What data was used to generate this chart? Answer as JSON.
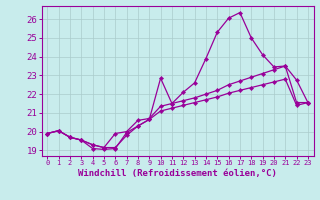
{
  "xlabel": "Windchill (Refroidissement éolien,°C)",
  "bg_color": "#c8ecec",
  "line_color": "#990099",
  "grid_color": "#aaccaa",
  "xlim": [
    -0.5,
    23.5
  ],
  "ylim": [
    18.7,
    26.7
  ],
  "xticks": [
    0,
    1,
    2,
    3,
    4,
    5,
    6,
    7,
    8,
    9,
    10,
    11,
    12,
    13,
    14,
    15,
    16,
    17,
    18,
    19,
    20,
    21,
    22,
    23
  ],
  "yticks": [
    19,
    20,
    21,
    22,
    23,
    24,
    25,
    26
  ],
  "lines": [
    {
      "x": [
        0,
        1,
        2,
        3,
        4,
        5,
        6,
        7,
        8,
        9,
        10,
        11,
        12,
        13,
        14,
        15,
        16,
        17,
        18,
        19,
        20,
        21,
        22,
        23
      ],
      "y": [
        19.9,
        20.05,
        19.7,
        19.55,
        19.1,
        19.05,
        19.1,
        19.95,
        20.3,
        20.65,
        22.85,
        21.5,
        22.1,
        22.6,
        23.9,
        25.3,
        26.05,
        26.35,
        25.0,
        24.1,
        23.45,
        23.5,
        22.75,
        21.55
      ]
    },
    {
      "x": [
        0,
        1,
        2,
        3,
        4,
        5,
        6,
        7,
        8,
        9,
        10,
        11,
        12,
        13,
        14,
        15,
        16,
        17,
        18,
        19,
        20,
        21,
        22,
        23
      ],
      "y": [
        19.9,
        20.05,
        19.7,
        19.55,
        19.3,
        19.15,
        19.9,
        20.0,
        20.6,
        20.7,
        21.35,
        21.5,
        21.65,
        21.8,
        22.0,
        22.2,
        22.5,
        22.7,
        22.9,
        23.1,
        23.3,
        23.5,
        21.55,
        21.55
      ]
    },
    {
      "x": [
        0,
        1,
        2,
        3,
        4,
        5,
        6,
        7,
        8,
        9,
        10,
        11,
        12,
        13,
        14,
        15,
        16,
        17,
        18,
        19,
        20,
        21,
        22,
        23
      ],
      "y": [
        19.9,
        20.05,
        19.7,
        19.55,
        19.3,
        19.15,
        19.15,
        19.8,
        20.3,
        20.65,
        21.1,
        21.25,
        21.4,
        21.55,
        21.7,
        21.85,
        22.05,
        22.2,
        22.35,
        22.5,
        22.65,
        22.8,
        21.4,
        21.55
      ]
    }
  ],
  "marker_points": {
    "line0": [
      0,
      1,
      2,
      3,
      4,
      5,
      6,
      7,
      8,
      9,
      10,
      11,
      12,
      13,
      14,
      15,
      16,
      17,
      18,
      19,
      20,
      21,
      22,
      23
    ],
    "line1": [
      0,
      2,
      4,
      6,
      8,
      10,
      12,
      14,
      16,
      18,
      20,
      22
    ],
    "line2": [
      0,
      2,
      4,
      6,
      8,
      10,
      12,
      14,
      16,
      18,
      20,
      22
    ]
  }
}
